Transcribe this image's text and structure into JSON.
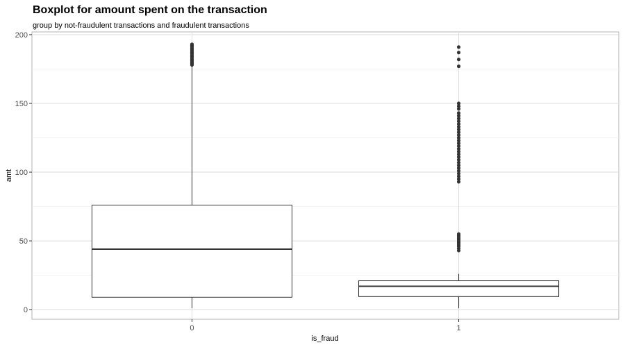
{
  "chart_data": {
    "type": "boxplot",
    "title": "Boxplot for amount spent on the transaction",
    "subtitle": "group by not-fraudulent transactions and fraudulent transactions",
    "xlabel": "is_fraud",
    "ylabel": "amt",
    "categories": [
      "0",
      "1"
    ],
    "ylim": [
      -7,
      202
    ],
    "y_ticks": [
      0,
      50,
      100,
      150,
      200
    ],
    "grid": true,
    "boxes": [
      {
        "category": "0",
        "whisker_low": 1,
        "q1": 9,
        "median": 44,
        "q3": 76,
        "whisker_high": 177,
        "outliers": [
          178,
          179,
          180,
          181,
          182,
          183,
          184,
          185,
          186,
          187,
          188,
          189,
          190,
          191,
          192,
          193
        ]
      },
      {
        "category": "1",
        "whisker_low": 1,
        "q1": 9.5,
        "median": 17,
        "q3": 21,
        "whisker_high": 26,
        "outliers": [
          43,
          44.5,
          46,
          47,
          48,
          49,
          50,
          51,
          52,
          53,
          54,
          55,
          93,
          95,
          97,
          99,
          101,
          103,
          105,
          107,
          109,
          111,
          113,
          115,
          117,
          119,
          121,
          123,
          125,
          127,
          129,
          131,
          133,
          135,
          137,
          139,
          141,
          143,
          146,
          148,
          150,
          177,
          182,
          187,
          191
        ]
      }
    ]
  }
}
